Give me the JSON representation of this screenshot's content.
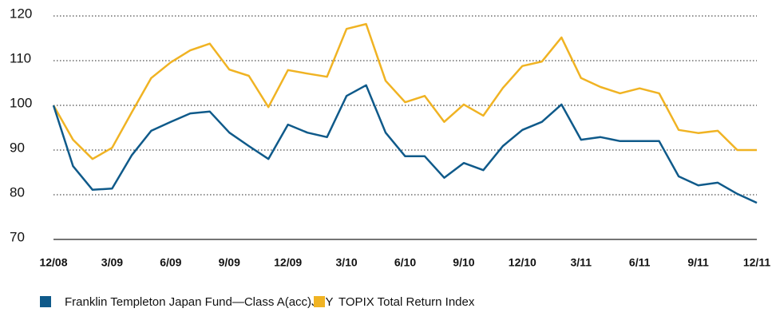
{
  "chart_data": {
    "type": "line",
    "categories": [
      "12/08",
      null,
      null,
      "3/09",
      null,
      null,
      "6/09",
      null,
      null,
      "9/09",
      null,
      null,
      "12/09",
      null,
      null,
      "3/10",
      null,
      null,
      "6/10",
      null,
      null,
      "9/10",
      null,
      null,
      "12/10",
      null,
      null,
      "3/11",
      null,
      null,
      "6/11",
      null,
      null,
      "9/11",
      null,
      null,
      "12/11"
    ],
    "series": [
      {
        "name": "Franklin Templeton Japan Fund—Class A(acc)JPY",
        "color": "#0f5a8a",
        "values": [
          100,
          86.4,
          81.1,
          81.4,
          88.8,
          94.3,
          96.3,
          98.2,
          98.6,
          93.9,
          90.9,
          88.0,
          95.7,
          93.9,
          92.9,
          102.1,
          104.5,
          93.9,
          88.6,
          88.6,
          83.8,
          87.1,
          85.5,
          90.9,
          94.5,
          96.3,
          100.2,
          92.3,
          92.9,
          92.0,
          92.0,
          92.0,
          84.1,
          82.1,
          82.7,
          80.2,
          78.2
        ]
      },
      {
        "name": "TOPIX Total Return Index",
        "color": "#f0b323",
        "values": [
          100,
          92.3,
          88.0,
          90.5,
          98.4,
          106.1,
          109.6,
          112.3,
          113.8,
          108.0,
          106.6,
          99.6,
          107.9,
          107.1,
          106.4,
          117.1,
          118.2,
          105.5,
          100.7,
          102.1,
          96.3,
          100.2,
          97.7,
          103.9,
          108.8,
          109.8,
          115.2,
          106.1,
          104.1,
          102.7,
          103.8,
          102.7,
          94.5,
          93.8,
          94.3,
          90.0,
          90.0
        ]
      }
    ],
    "ylim": [
      70,
      120
    ],
    "yticks": [
      70,
      80,
      90,
      100,
      110,
      120
    ],
    "grid": true
  }
}
